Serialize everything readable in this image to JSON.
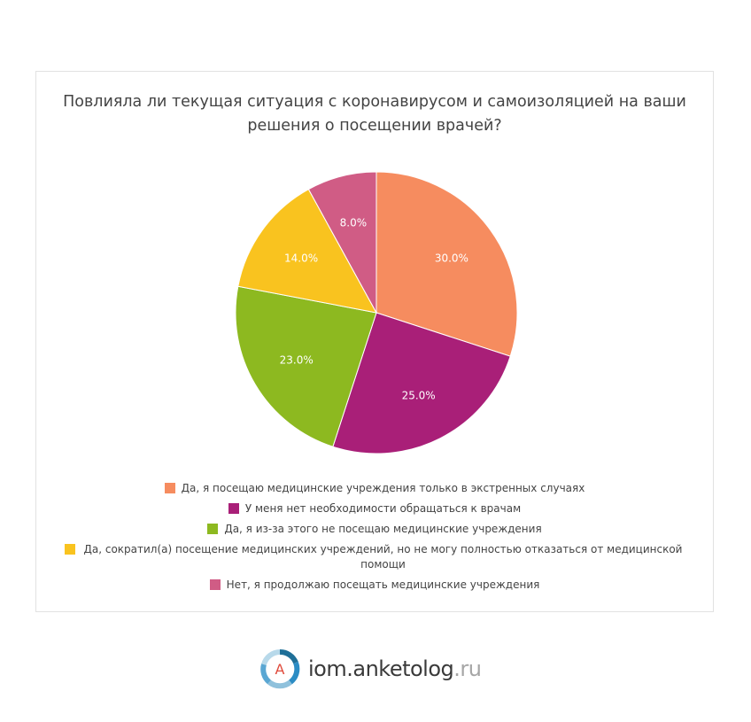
{
  "chart_data": {
    "type": "pie",
    "title": "Повлияла ли текущая ситуация с коронавирусом и самоизоляцией на ваши решения о посещении врачей?",
    "slices": [
      {
        "label": "Да, я посещаю медицинские учреждения только в экстренных случаях",
        "value": 30.0,
        "display": "30.0%",
        "color": "#f68c5f"
      },
      {
        "label": "У меня нет необходимости обращаться к врачам",
        "value": 25.0,
        "display": "25.0%",
        "color": "#a91f78"
      },
      {
        "label": "Да, я из-за этого не посещаю медицинские учреждения",
        "value": 23.0,
        "display": "23.0%",
        "color": "#8db920"
      },
      {
        "label": "Да, сократил(а) посещение медицинских учреждений, но не могу полностью отказаться от медицинской помощи",
        "value": 14.0,
        "display": "14.0%",
        "color": "#f9c31f"
      },
      {
        "label": "Нет, я продолжаю посещать медицинские учреждения",
        "value": 8.0,
        "display": "8.0%",
        "color": "#d05c85"
      }
    ],
    "legend_position": "bottom"
  },
  "logo": {
    "main": "iom.anketolog",
    "tld": ".ru",
    "icon_letter": "A"
  }
}
